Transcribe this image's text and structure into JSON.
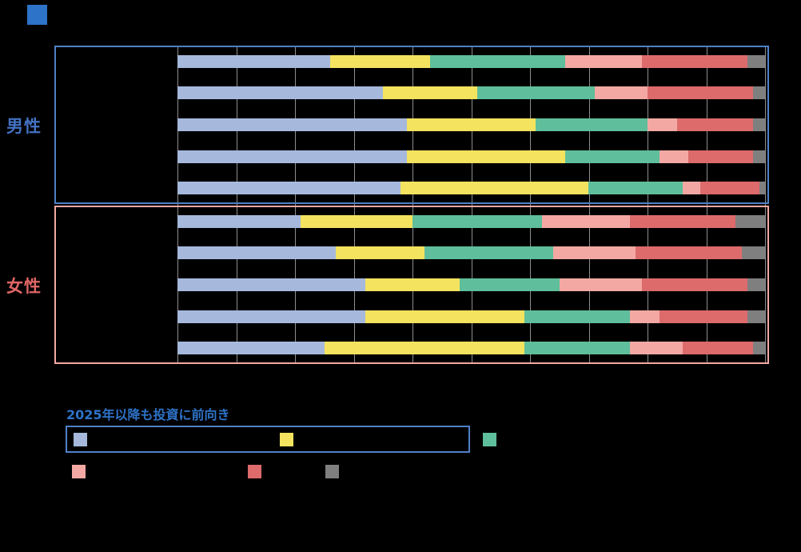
{
  "page": {
    "background": "#000000",
    "title_bullet_color": "#2d73c8"
  },
  "chart_data": {
    "type": "bar",
    "orientation": "horizontal",
    "stacked": true,
    "value_unit": "%",
    "xlim": [
      0,
      100
    ],
    "gridline_step": 10,
    "grid_on": true,
    "grid_color": "#8e8e8e",
    "legend_position": "bottom",
    "segment_names": [
      "light-blue",
      "yellow",
      "green",
      "pink",
      "red",
      "gray"
    ],
    "segment_colors": [
      "#a6b9dc",
      "#f3e35f",
      "#5fbe9b",
      "#f4a8a3",
      "#dd6b6b",
      "#7f7f7f"
    ],
    "groups": [
      {
        "id": "male",
        "label": "男性",
        "label_color": "#4472c4",
        "border_color": "#4f81c7",
        "rows": [
          {
            "values": [
              26,
              17,
              23,
              13,
              18,
              3
            ]
          },
          {
            "values": [
              35,
              16,
              20,
              9,
              18,
              2
            ]
          },
          {
            "values": [
              39,
              22,
              19,
              5,
              13,
              2
            ]
          },
          {
            "values": [
              39,
              27,
              16,
              5,
              11,
              2
            ]
          },
          {
            "values": [
              38,
              32,
              16,
              3,
              10,
              1
            ]
          }
        ]
      },
      {
        "id": "female",
        "label": "女性",
        "label_color": "#e06666",
        "border_color": "#f4a8a3",
        "rows": [
          {
            "values": [
              21,
              19,
              22,
              15,
              18,
              5
            ]
          },
          {
            "values": [
              27,
              15,
              22,
              14,
              18,
              4
            ]
          },
          {
            "values": [
              32,
              16,
              17,
              14,
              18,
              3
            ]
          },
          {
            "values": [
              32,
              27,
              18,
              5,
              15,
              3
            ]
          },
          {
            "values": [
              25,
              34,
              18,
              9,
              12,
              2
            ]
          }
        ]
      }
    ],
    "legend": {
      "highlight_title": "2025年以降も投資に前向き",
      "highlight_color": "#2d73c8",
      "box_border_color": "#4f81c7"
    }
  }
}
